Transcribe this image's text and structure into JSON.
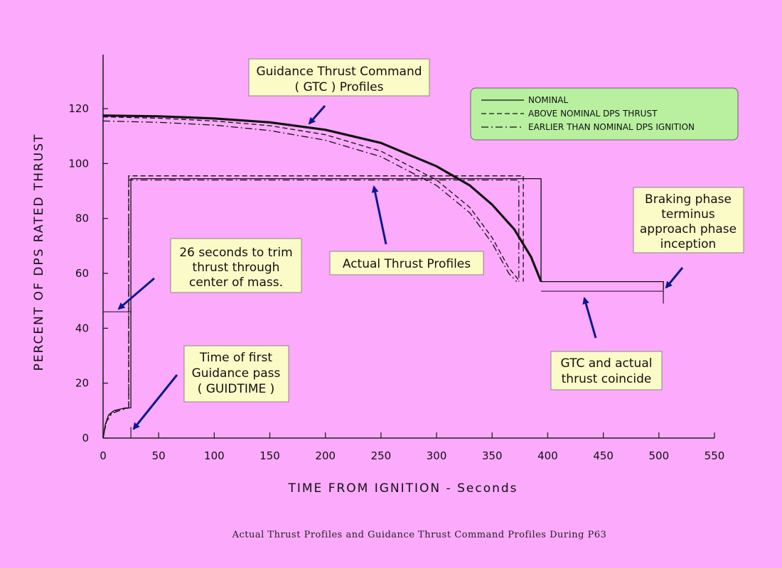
{
  "chart_data": {
    "type": "line",
    "xlabel": "TIME  FROM  IGNITION  -  Seconds",
    "ylabel": "PERCENT  OF  DPS  RATED  THRUST",
    "xlim": [
      0,
      550
    ],
    "ylim": [
      0,
      140
    ],
    "xticks": [
      0,
      50,
      100,
      150,
      200,
      250,
      300,
      350,
      400,
      450,
      500,
      550
    ],
    "yticks": [
      0,
      20,
      40,
      60,
      80,
      100,
      120
    ],
    "grid": false,
    "legend_position": "top-right",
    "caption": "Actual Thrust Profiles and Guidance Thrust Command Profiles During P63",
    "legend": [
      {
        "label": "NOMINAL",
        "style": "solid"
      },
      {
        "label": "ABOVE  NOMINAL  DPS  THRUST",
        "style": "dashed"
      },
      {
        "label": "EARLIER  THAN  NOMINAL  DPS  IGNITION",
        "style": "dashdot"
      }
    ],
    "series": [
      {
        "group": "gtc",
        "style": "solid",
        "weight": "bold",
        "x": [
          0,
          50,
          100,
          150,
          200,
          250,
          300,
          330,
          350,
          370,
          385,
          394
        ],
        "y": [
          117.5,
          117.2,
          116.4,
          115,
          112.3,
          107.5,
          99,
          92,
          85,
          76,
          66,
          57
        ]
      },
      {
        "group": "gtc",
        "style": "dashed",
        "x": [
          0,
          50,
          100,
          150,
          200,
          250,
          300,
          330,
          350,
          365,
          375
        ],
        "y": [
          117,
          116.5,
          115.5,
          113.8,
          110.5,
          104.5,
          94,
          84,
          73,
          62,
          57
        ]
      },
      {
        "group": "gtc",
        "style": "dashdot",
        "x": [
          0,
          50,
          100,
          150,
          200,
          250,
          300,
          330,
          350,
          365,
          372
        ],
        "y": [
          115.5,
          115,
          114,
          112,
          108.5,
          102.5,
          92,
          82,
          71,
          60,
          57
        ]
      },
      {
        "group": "actual",
        "style": "solid",
        "x": [
          0,
          2,
          5,
          10,
          15,
          20,
          25,
          25,
          394,
          394,
          504,
          504
        ],
        "y": [
          0,
          5,
          8.5,
          10,
          10.5,
          11,
          11,
          94.5,
          94.5,
          57,
          57,
          54
        ]
      },
      {
        "group": "actual",
        "style": "dashed",
        "x": [
          0,
          3,
          8,
          15,
          23,
          23,
          378,
          378
        ],
        "y": [
          0,
          6,
          9.5,
          10.5,
          11,
          95.5,
          95.5,
          57
        ]
      },
      {
        "group": "actual",
        "style": "dashdot",
        "x": [
          0,
          3,
          8,
          15,
          23,
          23,
          374,
          374
        ],
        "y": [
          0,
          6,
          9,
          10,
          11,
          94,
          94,
          57
        ]
      }
    ],
    "annotations": [
      {
        "id": "gtc-profiles",
        "lines": [
          "Guidance Thrust Command",
          "( GTC ) Profiles"
        ]
      },
      {
        "id": "actual-thrust",
        "lines": [
          "Actual Thrust Profiles"
        ]
      },
      {
        "id": "trim",
        "lines": [
          "26 seconds to trim",
          "thrust through",
          "center of mass."
        ]
      },
      {
        "id": "guidtime",
        "lines": [
          "Time of first",
          "Guidance pass",
          "( GUIDTIME )"
        ]
      },
      {
        "id": "braking",
        "lines": [
          "Braking phase",
          "terminus",
          "approach phase",
          "inception"
        ]
      },
      {
        "id": "coincide",
        "lines": [
          "GTC and actual",
          "thrust coincide"
        ]
      }
    ]
  }
}
